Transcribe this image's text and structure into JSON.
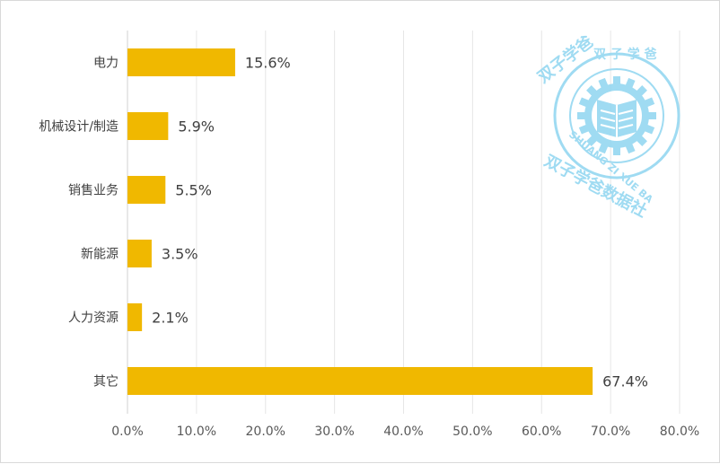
{
  "chart_data": {
    "type": "bar",
    "orientation": "horizontal",
    "categories": [
      "电力",
      "机械设计/制造",
      "销售业务",
      "新能源",
      "人力资源",
      "其它"
    ],
    "values": [
      15.6,
      5.9,
      5.5,
      3.5,
      2.1,
      67.4
    ],
    "data_labels": [
      "15.6%",
      "5.9%",
      "5.5%",
      "3.5%",
      "2.1%",
      "67.4%"
    ],
    "x_ticks": [
      "0.0%",
      "10.0%",
      "20.0%",
      "30.0%",
      "40.0%",
      "50.0%",
      "60.0%",
      "70.0%",
      "80.0%"
    ],
    "xlim": [
      0,
      80
    ],
    "grid": true,
    "bar_color": "#f0b800",
    "title": "",
    "xlabel": "",
    "ylabel": ""
  },
  "watermark": {
    "top_text": "双子学爸数据社",
    "ring_text": "双子学爸",
    "latin_text": "SHUANG ZI XUE BA",
    "color": "#8fd5f0"
  }
}
